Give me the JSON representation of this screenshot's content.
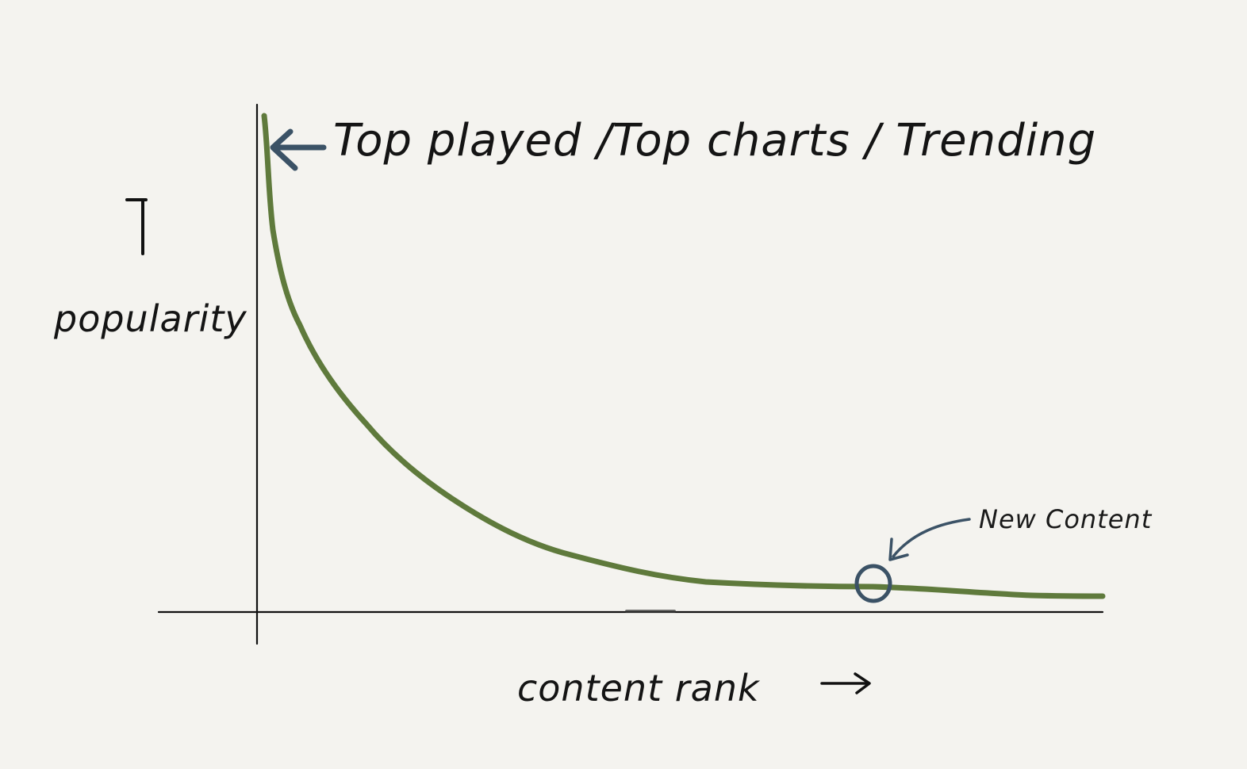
{
  "annotations": {
    "top_label": "Top played /Top charts / Trending",
    "new_content_label": "New Content"
  },
  "axes": {
    "y_label": "popularity",
    "x_label": "content rank"
  },
  "colors": {
    "background": "#f4f3ef",
    "curve": "#5f7a3c",
    "arrow": "#3b5266",
    "axis": "#111111",
    "ink": "#141414"
  },
  "icons": {
    "y_axis_arrow": "up-arrow-icon",
    "x_axis_arrow": "right-arrow-icon",
    "top_pointer": "left-arrow-icon",
    "new_content_pointer": "curved-arrow-icon",
    "new_content_marker": "circle-marker-icon"
  }
}
